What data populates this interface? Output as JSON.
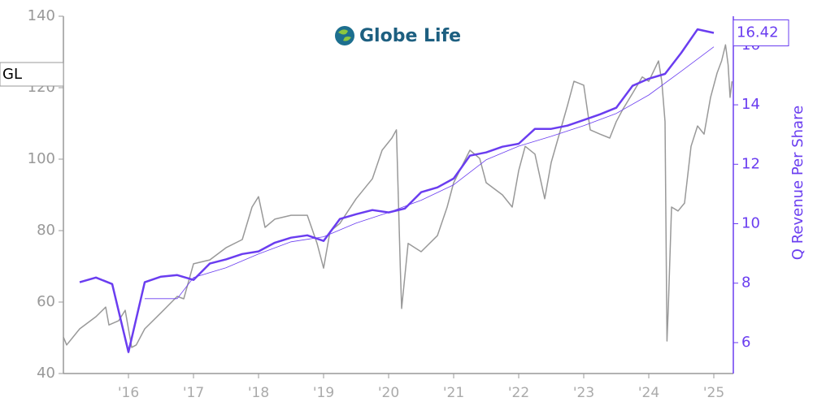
{
  "chart_data": {
    "type": "line",
    "logo_text": "Globe Life",
    "ticker": "GL",
    "y2_label": "Q Revenue Per Share",
    "y2_last_label": 16.42,
    "xlim": [
      2015.0,
      2025.3
    ],
    "xticks": [
      {
        "value": 2016,
        "label": "'16"
      },
      {
        "value": 2017,
        "label": "'17"
      },
      {
        "value": 2018,
        "label": "'18"
      },
      {
        "value": 2019,
        "label": "'19"
      },
      {
        "value": 2020,
        "label": "'20"
      },
      {
        "value": 2021,
        "label": "'21"
      },
      {
        "value": 2022,
        "label": "'22"
      },
      {
        "value": 2023,
        "label": "'23"
      },
      {
        "value": 2024,
        "label": "'24"
      },
      {
        "value": 2025,
        "label": "'25"
      }
    ],
    "ylim": [
      40,
      140
    ],
    "yticks": [
      40,
      60,
      80,
      100,
      120,
      140
    ],
    "y2lim": [
      4.96,
      16.98
    ],
    "y2ticks": [
      6,
      8,
      10,
      12,
      14,
      16
    ],
    "series": [
      {
        "color": "#999999",
        "width": 1.5,
        "x": [
          2015.0,
          2015.05,
          2015.25,
          2015.5,
          2015.65,
          2015.7,
          2015.85,
          2015.95,
          2016.05,
          2016.12,
          2016.25,
          2016.5,
          2016.75,
          2016.85,
          2017.0,
          2017.25,
          2017.5,
          2017.75,
          2017.9,
          2018.0,
          2018.1,
          2018.25,
          2018.5,
          2018.75,
          2018.9,
          2019.0,
          2019.1,
          2019.25,
          2019.5,
          2019.75,
          2019.9,
          2020.05,
          2020.12,
          2020.18,
          2020.2,
          2020.3,
          2020.5,
          2020.75,
          2020.9,
          2021.0,
          2021.25,
          2021.4,
          2021.5,
          2021.75,
          2021.9,
          2022.0,
          2022.1,
          2022.25,
          2022.4,
          2022.5,
          2022.75,
          2022.85,
          2023.0,
          2023.1,
          2023.25,
          2023.4,
          2023.5,
          2023.6,
          2023.75,
          2023.9,
          2024.0,
          2024.15,
          2024.2,
          2024.25,
          2024.28,
          2024.3,
          2024.35,
          2024.45,
          2024.55,
          2024.65,
          2024.75,
          2024.85,
          2024.95,
          2025.05,
          2025.12,
          2025.18,
          2025.22,
          2025.25,
          2025.28
        ],
        "values": [
          50.2,
          48,
          52.5,
          55.9,
          58.6,
          53.6,
          54.8,
          57.7,
          47.3,
          48,
          52.5,
          57,
          61.6,
          60.9,
          70.7,
          71.8,
          75.2,
          77.5,
          86.6,
          89.5,
          80.9,
          83.2,
          84.3,
          84.3,
          76.4,
          69.5,
          79.8,
          82,
          88.9,
          94.5,
          102.5,
          105.9,
          108.2,
          69.5,
          58.2,
          76.4,
          74.1,
          78.6,
          86.6,
          93.4,
          102.5,
          100.2,
          93.4,
          90,
          86.6,
          96.8,
          103.6,
          101.4,
          88.9,
          99.1,
          115,
          121.8,
          120.7,
          108.2,
          107,
          105.9,
          110.5,
          113.9,
          118.4,
          123,
          121.8,
          127.5,
          121.8,
          110.5,
          49.1,
          58.2,
          86.6,
          85.5,
          87.7,
          103.6,
          109.3,
          107,
          117.3,
          124.1,
          127.5,
          132,
          126.4,
          117.3,
          121.8
        ]
      },
      {
        "color": "#6a3df0",
        "width": 2.5,
        "axis": "y2",
        "x": [
          2015.25,
          2015.5,
          2015.75,
          2016.0,
          2016.25,
          2016.5,
          2016.75,
          2017.0,
          2017.25,
          2017.5,
          2017.75,
          2018.0,
          2018.25,
          2018.5,
          2018.75,
          2019.0,
          2019.25,
          2019.5,
          2019.75,
          2020.0,
          2020.25,
          2020.5,
          2020.75,
          2021.0,
          2021.25,
          2021.5,
          2021.75,
          2022.0,
          2022.25,
          2022.5,
          2022.75,
          2023.0,
          2023.25,
          2023.5,
          2023.75,
          2024.0,
          2024.25,
          2024.5,
          2024.75,
          2025.0
        ],
        "values": [
          8.03,
          8.19,
          7.97,
          5.68,
          8.03,
          8.22,
          8.27,
          8.11,
          8.66,
          8.8,
          8.98,
          9.07,
          9.36,
          9.53,
          9.61,
          9.42,
          10.16,
          10.32,
          10.46,
          10.38,
          10.51,
          11.06,
          11.22,
          11.52,
          12.29,
          12.4,
          12.59,
          12.69,
          13.19,
          13.19,
          13.3,
          13.49,
          13.68,
          13.9,
          14.64,
          14.88,
          15.04,
          15.75,
          16.54,
          16.42
        ]
      },
      {
        "color": "#6a3df0",
        "width": 0.8,
        "axis": "y2",
        "x": [
          2016.25,
          2016.75,
          2017.0,
          2017.5,
          2018.0,
          2018.5,
          2019.0,
          2019.5,
          2020.0,
          2020.5,
          2021.0,
          2021.5,
          2022.0,
          2022.5,
          2023.0,
          2023.5,
          2024.0,
          2024.5,
          2025.0
        ],
        "values": [
          7.48,
          7.48,
          8.19,
          8.52,
          8.98,
          9.39,
          9.56,
          10.02,
          10.38,
          10.79,
          11.31,
          12.15,
          12.61,
          12.94,
          13.3,
          13.71,
          14.33,
          15.13,
          15.95
        ]
      }
    ]
  }
}
